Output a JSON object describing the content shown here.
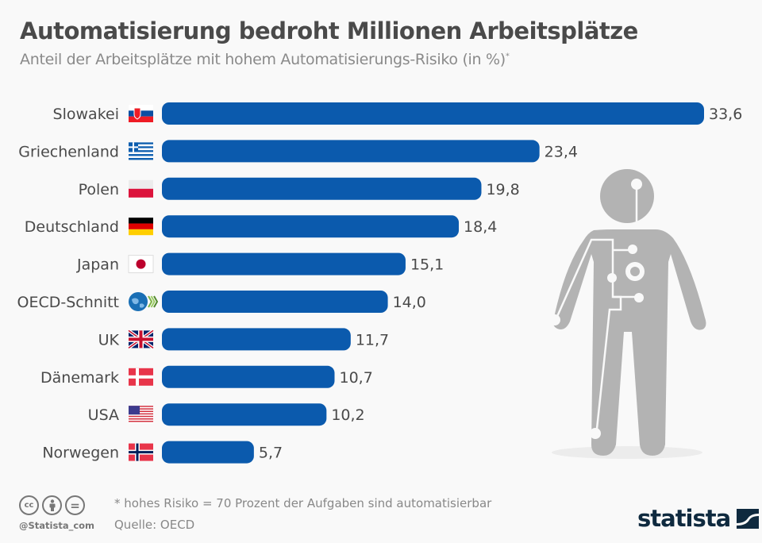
{
  "header": {
    "title": "Automatisierung bedroht Millionen Arbeitsplätze",
    "subtitle": "Anteil der Arbeitsplätze mit hohem Automatisierungs-Risiko (in %)",
    "subtitle_mark": "*"
  },
  "chart_data": {
    "type": "bar",
    "orientation": "horizontal",
    "title": "Automatisierung bedroht Millionen Arbeitsplätze",
    "subtitle": "Anteil der Arbeitsplätze mit hohem Automatisierungs-Risiko (in %)*",
    "xlabel": "",
    "ylabel": "",
    "xlim": [
      0,
      33.6
    ],
    "grid": false,
    "categories": [
      "Slowakei",
      "Griechenland",
      "Polen",
      "Deutschland",
      "Japan",
      "OECD-Schnitt",
      "UK",
      "Dänemark",
      "USA",
      "Norwegen"
    ],
    "values": [
      33.6,
      23.4,
      19.8,
      18.4,
      15.1,
      14.0,
      11.7,
      10.7,
      10.2,
      5.7
    ],
    "value_labels": [
      "33,6",
      "23,4",
      "19,8",
      "18,4",
      "15,1",
      "14,0",
      "11,7",
      "10,7",
      "10,2",
      "5,7"
    ],
    "flags": [
      "sk",
      "gr",
      "pl",
      "de",
      "jp",
      "oecd",
      "uk",
      "dk",
      "us",
      "no"
    ],
    "bar_color": "#0b5aad"
  },
  "footer": {
    "note": "* hohes Risiko = 70 Prozent der Aufgaben sind automatisierbar",
    "source": "Quelle: OECD",
    "handle": "@Statista_com",
    "cc_icons": [
      "cc-icon",
      "by-icon",
      "nd-icon"
    ],
    "cc_text": "cc",
    "nd_text": "="
  },
  "brand": {
    "name": "statista",
    "color": "#0f2a3f"
  },
  "colors": {
    "background": "#f9f9f9",
    "figure": "#b3b3b3"
  }
}
